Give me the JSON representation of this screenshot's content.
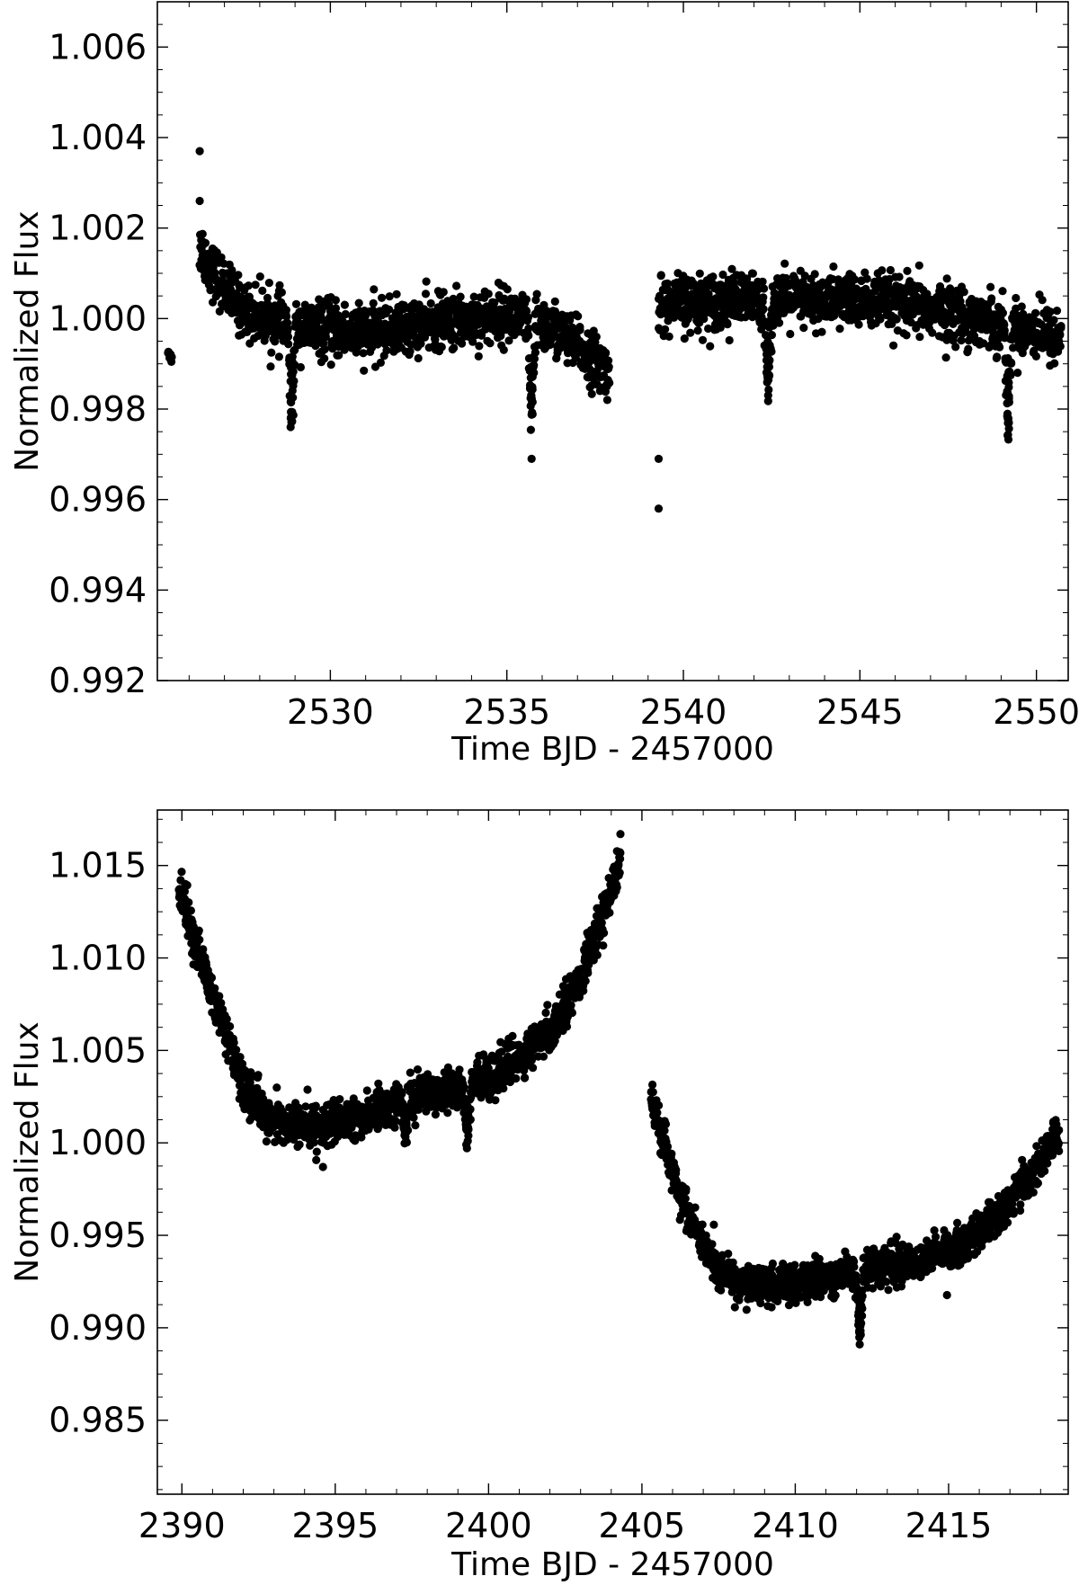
{
  "chart_data": [
    {
      "type": "scatter",
      "title": "",
      "xlabel": "Time BJD - 2457000",
      "ylabel": "Normalized Flux",
      "xlim": [
        2525.1,
        2550.9
      ],
      "ylim": [
        0.992,
        1.007
      ],
      "xticks": [
        2530,
        2535,
        2540,
        2545,
        2550
      ],
      "xtick_labels": [
        "2530",
        "2535",
        "2540",
        "2545",
        "2550"
      ],
      "yticks": [
        0.992,
        0.994,
        0.996,
        0.998,
        1.0,
        1.002,
        1.004,
        1.006
      ],
      "ytick_labels": [
        "0.992",
        "0.994",
        "0.996",
        "0.998",
        "1.000",
        "1.002",
        "1.004",
        "1.006"
      ],
      "grid": false,
      "legend": "none",
      "marker_color": "#000000",
      "segments": [
        {
          "x_start": 2525.4,
          "x_end": 2525.5,
          "trend": [
            [
              2525.4,
              0.9993
            ],
            [
              2525.5,
              0.9991
            ]
          ],
          "scatter": 0.0001
        },
        {
          "x_start": 2526.3,
          "x_end": 2537.9,
          "trend": [
            [
              2526.3,
              1.0016
            ],
            [
              2526.8,
              1.0009
            ],
            [
              2527.5,
              1.0002
            ],
            [
              2529.0,
              0.9998
            ],
            [
              2531.0,
              0.9997
            ],
            [
              2533.0,
              0.9999
            ],
            [
              2535.0,
              1.0001
            ],
            [
              2536.5,
              0.9997
            ],
            [
              2537.9,
              0.9988
            ]
          ],
          "scatter": 0.0006
        },
        {
          "x_start": 2539.3,
          "x_end": 2550.7,
          "trend": [
            [
              2539.3,
              1.0003
            ],
            [
              2541.0,
              1.0004
            ],
            [
              2543.0,
              1.0004
            ],
            [
              2545.0,
              1.0004
            ],
            [
              2547.0,
              1.0002
            ],
            [
              2549.0,
              0.9999
            ],
            [
              2550.7,
              0.9996
            ]
          ],
          "scatter": 0.0006
        }
      ],
      "dips": [
        {
          "x": 2528.9,
          "depth": 0.0022,
          "width": 0.12
        },
        {
          "x": 2535.7,
          "depth": 0.0022,
          "width": 0.12
        },
        {
          "x": 2542.4,
          "depth": 0.002,
          "width": 0.12
        },
        {
          "x": 2549.2,
          "depth": 0.0022,
          "width": 0.12
        }
      ],
      "outliers": [
        {
          "x": 2526.3,
          "y": 1.0037
        },
        {
          "x": 2539.3,
          "y": 0.9969
        },
        {
          "x": 2539.3,
          "y": 0.9958
        },
        {
          "x": 2535.7,
          "y": 0.9969
        },
        {
          "x": 2526.3,
          "y": 1.0026
        }
      ]
    },
    {
      "type": "scatter",
      "title": "",
      "xlabel": "Time BJD - 2457000",
      "ylabel": "Normalized Flux",
      "xlim": [
        2389.2,
        2418.9
      ],
      "ylim": [
        0.981,
        1.018
      ],
      "xticks": [
        2390,
        2395,
        2400,
        2405,
        2410,
        2415
      ],
      "xtick_labels": [
        "2390",
        "2395",
        "2400",
        "2405",
        "2410",
        "2415"
      ],
      "yticks": [
        0.985,
        0.99,
        0.995,
        1.0,
        1.005,
        1.01,
        1.015
      ],
      "ytick_labels": [
        "0.985",
        "0.990",
        "0.995",
        "1.000",
        "1.005",
        "1.010",
        "1.015"
      ],
      "grid": false,
      "legend": "none",
      "marker_color": "#000000",
      "segments": [
        {
          "x_start": 2389.9,
          "x_end": 2404.3,
          "trend": [
            [
              2389.9,
              1.0138
            ],
            [
              2390.5,
              1.0105
            ],
            [
              2391.2,
              1.007
            ],
            [
              2392.0,
              1.003
            ],
            [
              2393.0,
              1.0012
            ],
            [
              2394.0,
              1.0009
            ],
            [
              2395.0,
              1.001
            ],
            [
              2396.0,
              1.0015
            ],
            [
              2397.0,
              1.0022
            ],
            [
              2398.0,
              1.0028
            ],
            [
              2399.0,
              1.003
            ],
            [
              2400.0,
              1.0036
            ],
            [
              2401.0,
              1.0045
            ],
            [
              2402.0,
              1.006
            ],
            [
              2403.0,
              1.009
            ],
            [
              2403.7,
              1.012
            ],
            [
              2404.3,
              1.0155
            ]
          ],
          "scatter": 0.0011
        },
        {
          "x_start": 2405.3,
          "x_end": 2418.6,
          "trend": [
            [
              2405.3,
              1.0022
            ],
            [
              2405.8,
              0.9995
            ],
            [
              2406.5,
              0.996
            ],
            [
              2407.3,
              0.9935
            ],
            [
              2408.0,
              0.9925
            ],
            [
              2409.0,
              0.9922
            ],
            [
              2410.0,
              0.9924
            ],
            [
              2411.0,
              0.9927
            ],
            [
              2412.0,
              0.9932
            ],
            [
              2413.0,
              0.9934
            ],
            [
              2414.0,
              0.9936
            ],
            [
              2415.0,
              0.9942
            ],
            [
              2416.0,
              0.9952
            ],
            [
              2417.0,
              0.9968
            ],
            [
              2417.8,
              0.9985
            ],
            [
              2418.6,
              1.0005
            ]
          ],
          "scatter": 0.001
        }
      ],
      "dips": [
        {
          "x": 2397.3,
          "depth": 0.002,
          "width": 0.15
        },
        {
          "x": 2399.3,
          "depth": 0.003,
          "width": 0.15
        },
        {
          "x": 2412.1,
          "depth": 0.0035,
          "width": 0.15
        }
      ],
      "outliers": [
        {
          "x": 2404.3,
          "y": 1.0167
        },
        {
          "x": 2394.6,
          "y": 0.9987
        },
        {
          "x": 2412.1,
          "y": 0.9891
        }
      ]
    }
  ]
}
